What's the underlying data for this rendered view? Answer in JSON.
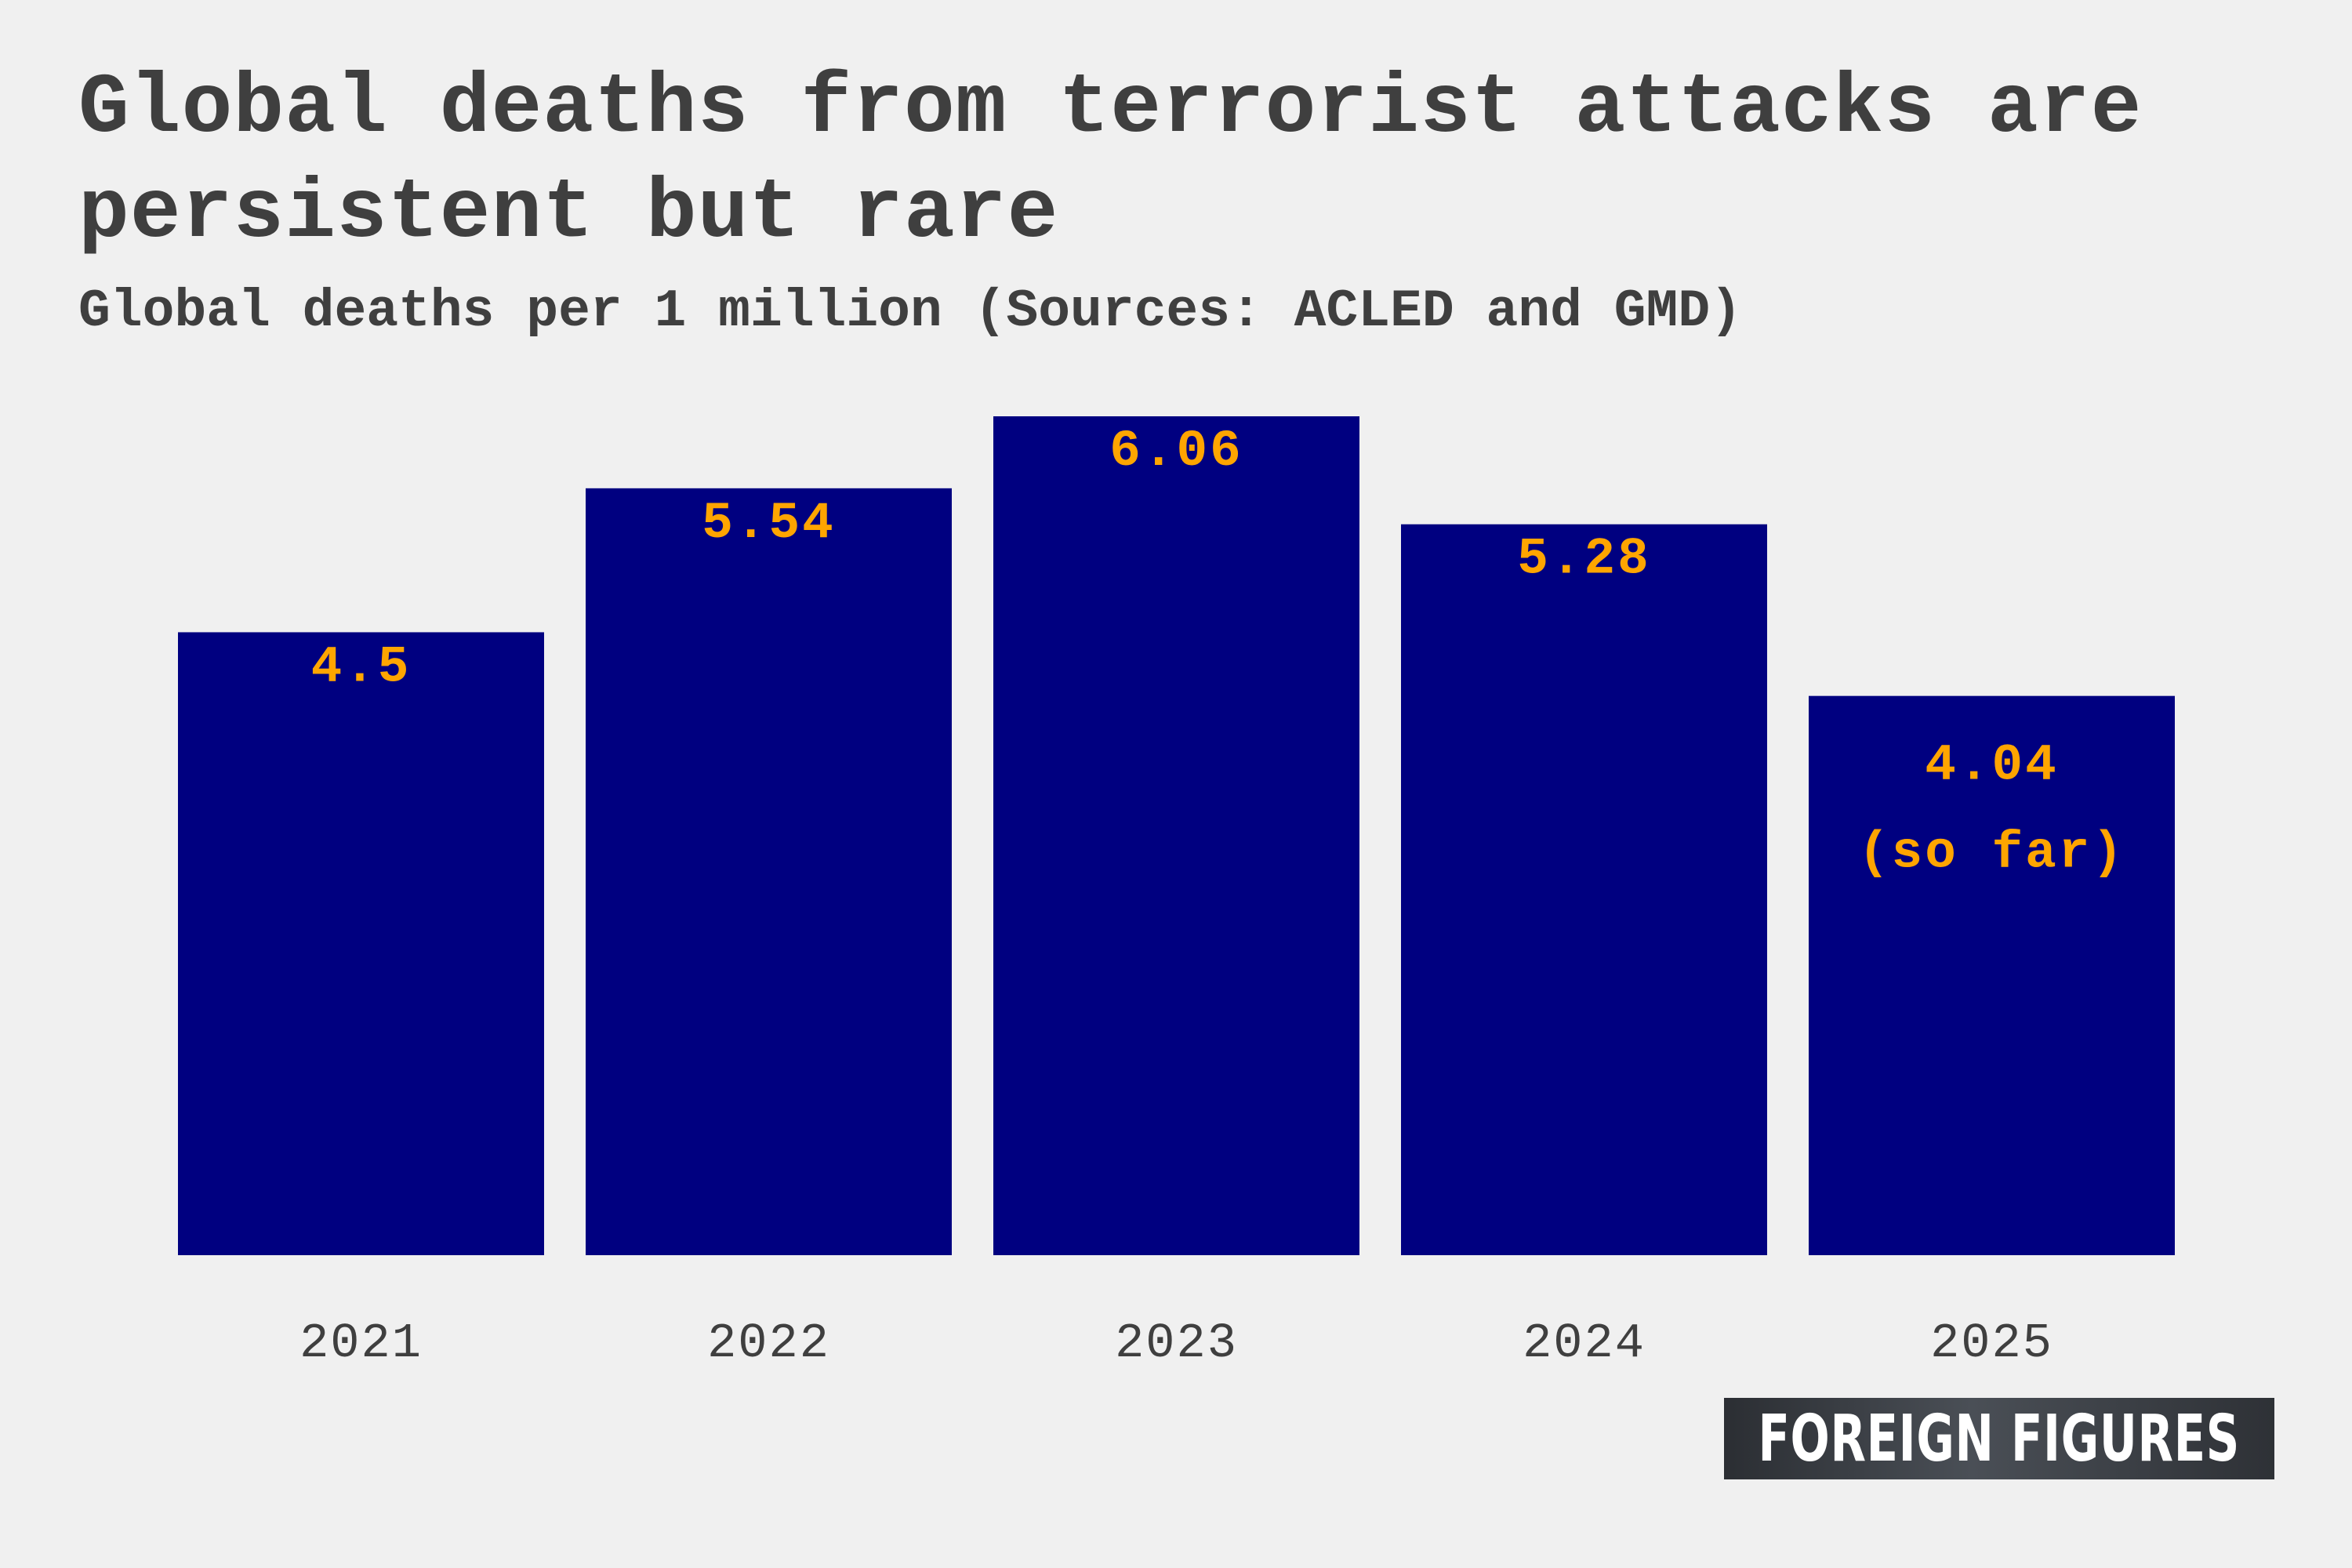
{
  "chart_data": {
    "type": "bar",
    "title": "Global deaths from terrorist attacks are persistent but rare",
    "subtitle": "Global deaths per 1 million (Sources: ACLED and GMD)",
    "categories": [
      "2021",
      "2022",
      "2023",
      "2024",
      "2025"
    ],
    "values": [
      4.5,
      5.54,
      6.06,
      5.28,
      4.04
    ],
    "value_labels": [
      "4.5",
      "5.54",
      "6.06",
      "5.28",
      "4.04"
    ],
    "value_label_notes": [
      "",
      "",
      "",
      "",
      "(so far)"
    ],
    "xlabel": "",
    "ylabel": "",
    "ylim": [
      0,
      6.06
    ],
    "grid": false,
    "legend": "none",
    "colors": {
      "bar": "#000080",
      "value_label": "#ffa500",
      "text": "#3f3f3f",
      "background": "#f0f0f0"
    }
  },
  "branding": {
    "logo_text": "FOREIGN FIGURES"
  }
}
